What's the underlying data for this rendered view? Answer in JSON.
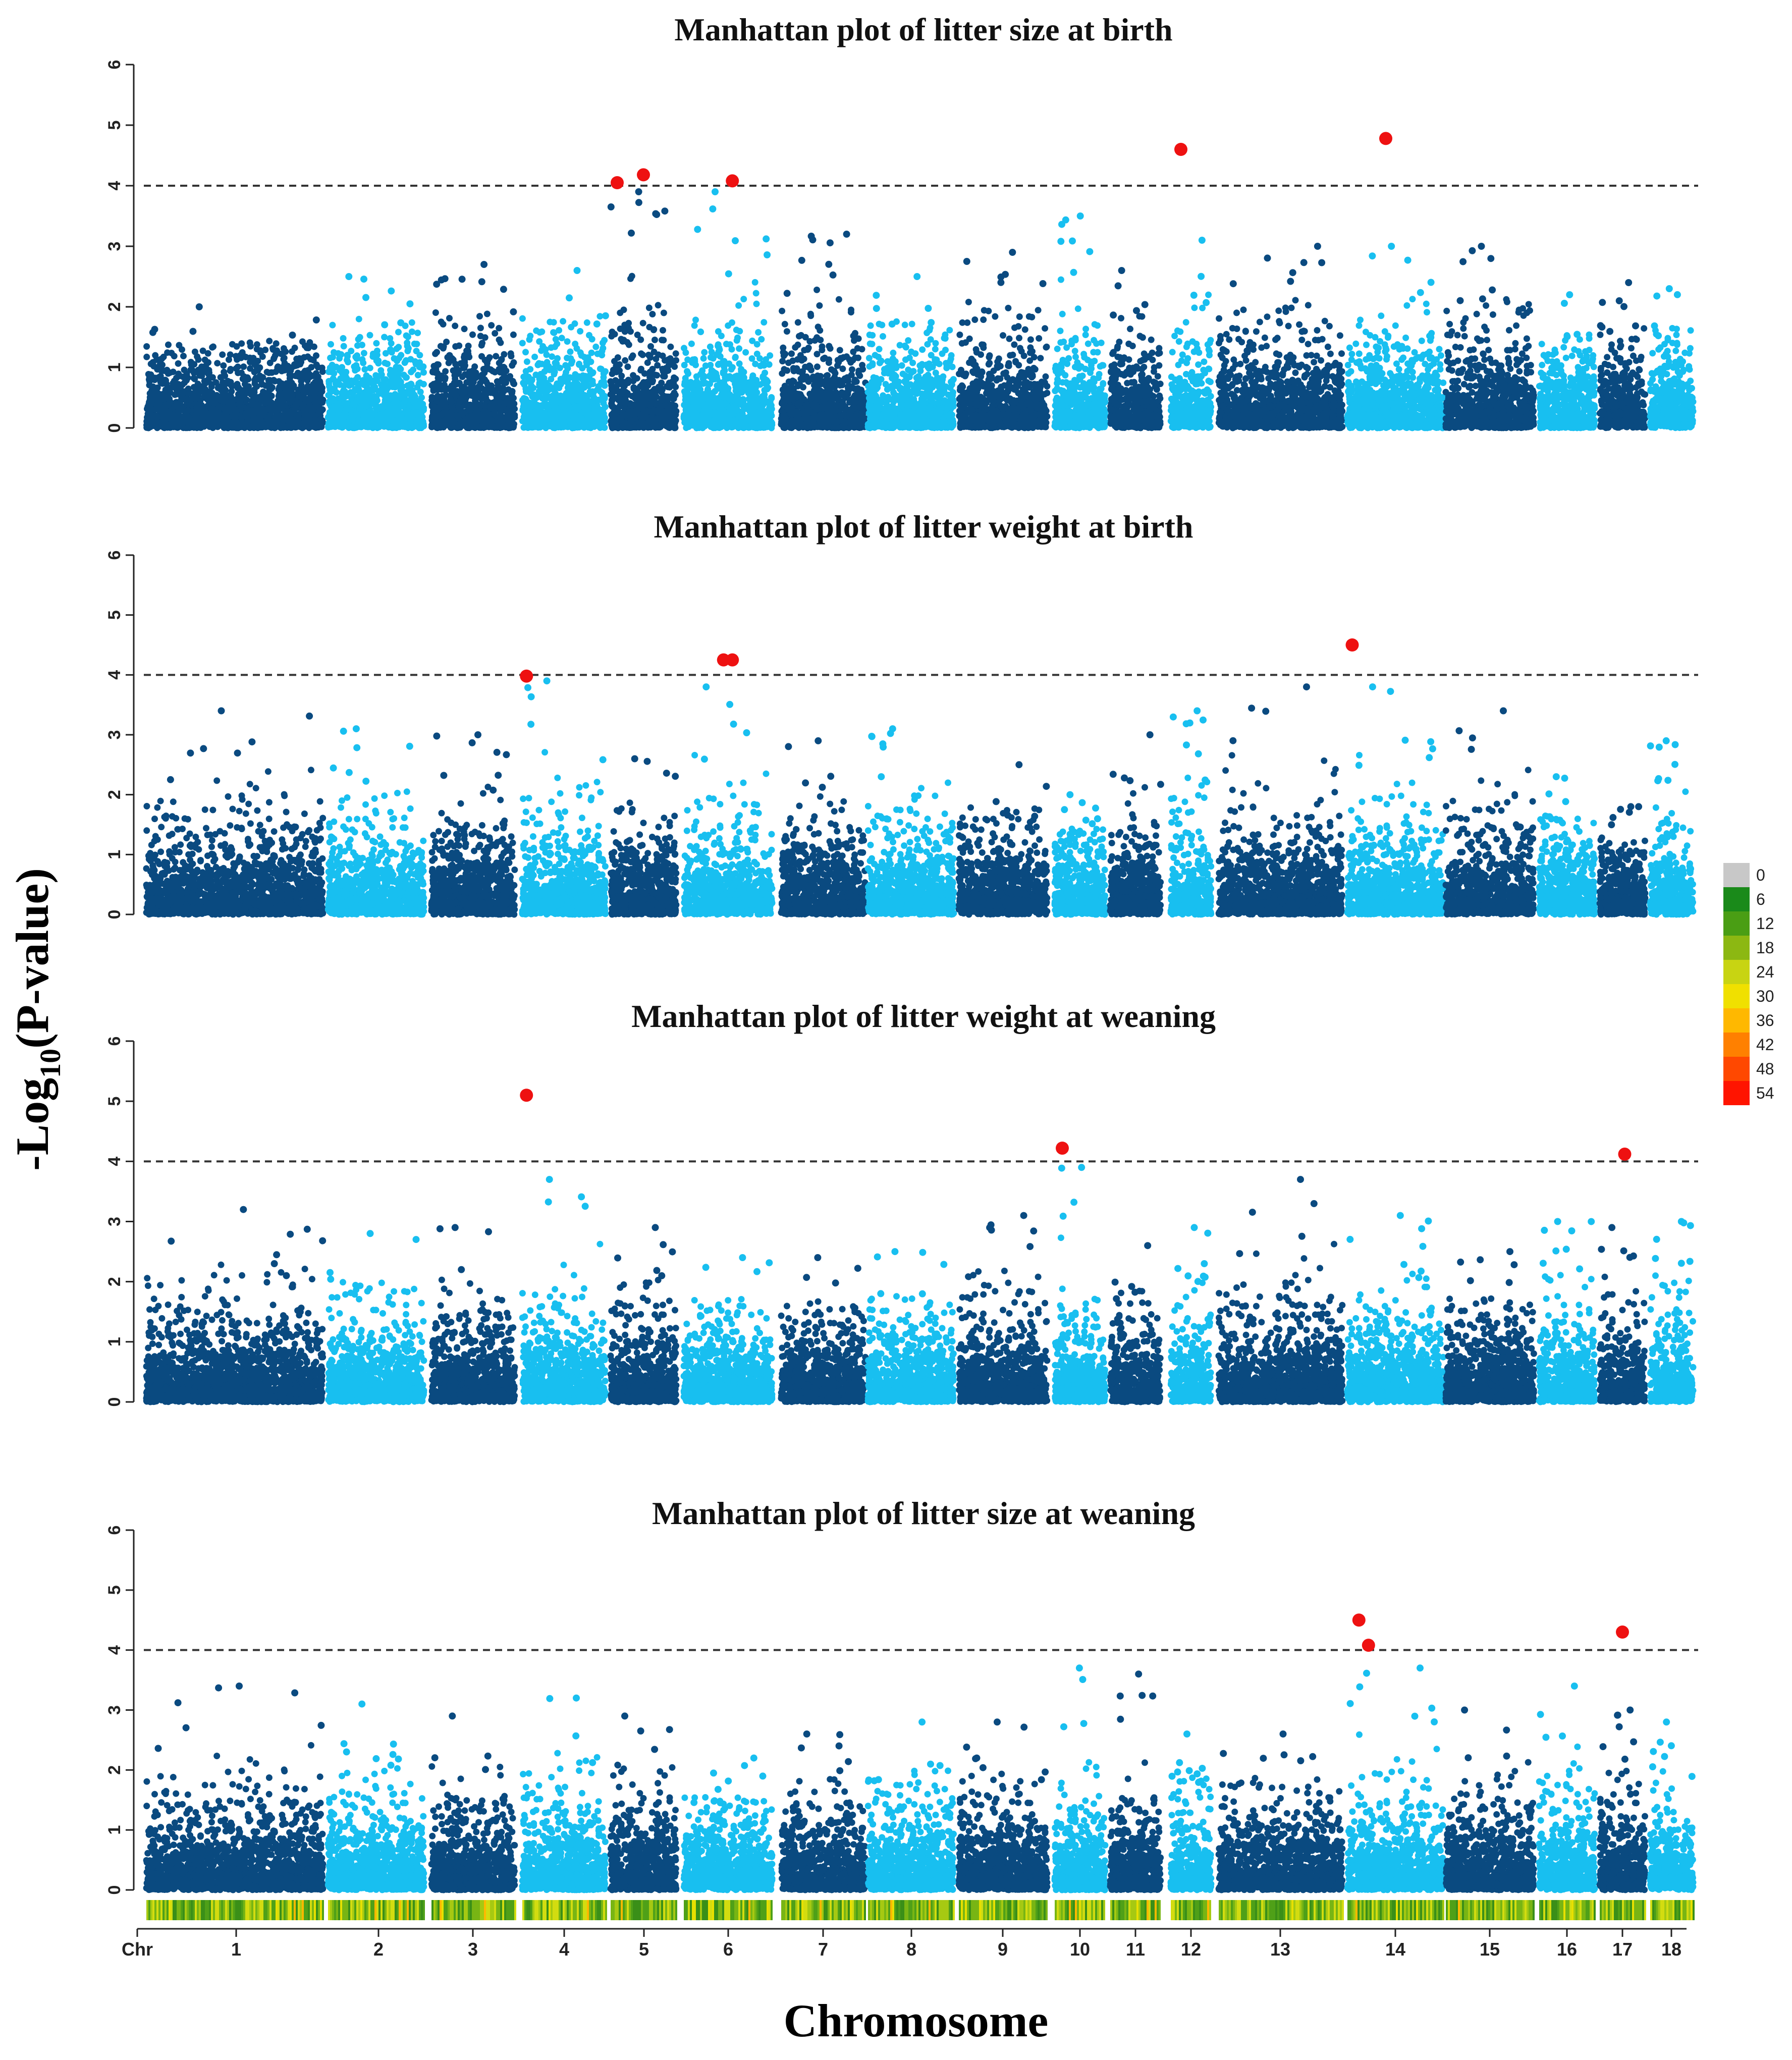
{
  "chart_data": [
    {
      "type": "scatter",
      "title": "Manhattan plot of litter size at birth",
      "xlabel": "Chromosome",
      "ylabel": "-Log10(P-value)",
      "ylim": [
        0,
        6
      ],
      "yticks": [
        "0",
        "1",
        "2",
        "3",
        "4",
        "5",
        "6"
      ],
      "threshold": 4,
      "chromosomes": [
        "1",
        "2",
        "3",
        "4",
        "5",
        "6",
        "7",
        "8",
        "9",
        "10",
        "11",
        "12",
        "13",
        "14",
        "15",
        "16",
        "17",
        "18"
      ],
      "chromosome_peaks": [
        2.0,
        2.5,
        2.7,
        2.6,
        3.9,
        3.9,
        3.2,
        2.5,
        2.9,
        3.5,
        2.6,
        3.1,
        3.0,
        3.0,
        3.0,
        2.2,
        2.4,
        2.3
      ],
      "significant": [
        {
          "chr": "5",
          "pos": 0.1,
          "value": 4.05
        },
        {
          "chr": "5",
          "pos": 0.5,
          "value": 4.18
        },
        {
          "chr": "6",
          "pos": 0.55,
          "value": 4.08
        },
        {
          "chr": "12",
          "pos": 0.25,
          "value": 4.6
        },
        {
          "chr": "14",
          "pos": 0.4,
          "value": 4.78
        }
      ]
    },
    {
      "type": "scatter",
      "title": "Manhattan plot of litter weight at birth",
      "xlabel": "Chromosome",
      "ylabel": "-Log10(P-value)",
      "ylim": [
        0,
        6
      ],
      "yticks": [
        "0",
        "1",
        "2",
        "3",
        "4",
        "5",
        "6"
      ],
      "threshold": 4,
      "chromosomes": [
        "1",
        "2",
        "3",
        "4",
        "5",
        "6",
        "7",
        "8",
        "9",
        "10",
        "11",
        "12",
        "13",
        "14",
        "15",
        "16",
        "17",
        "18"
      ],
      "chromosome_peaks": [
        3.4,
        3.1,
        3.0,
        3.9,
        2.6,
        3.8,
        2.9,
        3.1,
        2.5,
        2.0,
        3.0,
        3.4,
        3.8,
        3.8,
        3.4,
        2.3,
        1.8,
        2.9
      ],
      "significant": [
        {
          "chr": "4",
          "pos": 0.05,
          "value": 3.98
        },
        {
          "chr": "6",
          "pos": 0.45,
          "value": 4.25
        },
        {
          "chr": "6",
          "pos": 0.55,
          "value": 4.25
        },
        {
          "chr": "14",
          "pos": 0.05,
          "value": 4.5
        }
      ]
    },
    {
      "type": "scatter",
      "title": "Manhattan plot of litter weight at weaning",
      "xlabel": "Chromosome",
      "ylabel": "-Log10(P-value)",
      "ylim": [
        0,
        6
      ],
      "yticks": [
        "0",
        "1",
        "2",
        "3",
        "4",
        "5",
        "6"
      ],
      "threshold": 4,
      "chromosomes": [
        "1",
        "2",
        "3",
        "4",
        "5",
        "6",
        "7",
        "8",
        "9",
        "10",
        "11",
        "12",
        "13",
        "14",
        "15",
        "16",
        "17",
        "18"
      ],
      "chromosome_peaks": [
        3.2,
        2.8,
        2.9,
        3.7,
        2.9,
        2.4,
        2.4,
        2.5,
        3.1,
        3.9,
        2.6,
        2.9,
        3.7,
        3.1,
        2.5,
        3.0,
        2.9,
        3.0
      ],
      "significant": [
        {
          "chr": "4",
          "pos": 0.05,
          "value": 5.1
        },
        {
          "chr": "10",
          "pos": 0.15,
          "value": 4.22
        },
        {
          "chr": "17",
          "pos": 0.55,
          "value": 4.12
        }
      ]
    },
    {
      "type": "scatter",
      "title": "Manhattan plot of litter size at weaning",
      "xlabel": "Chromosome",
      "ylabel": "-Log10(P-value)",
      "ylim": [
        0,
        6
      ],
      "yticks": [
        "0",
        "1",
        "2",
        "3",
        "4",
        "5",
        "6"
      ],
      "threshold": 4,
      "chromosomes": [
        "1",
        "2",
        "3",
        "4",
        "5",
        "6",
        "7",
        "8",
        "9",
        "10",
        "11",
        "12",
        "13",
        "14",
        "15",
        "16",
        "17",
        "18"
      ],
      "chromosome_peaks": [
        3.4,
        3.1,
        2.9,
        3.2,
        2.9,
        2.2,
        2.6,
        2.8,
        2.8,
        3.7,
        3.6,
        2.6,
        2.6,
        3.7,
        3.0,
        3.4,
        3.0,
        2.8
      ],
      "significant": [
        {
          "chr": "14",
          "pos": 0.12,
          "value": 4.5
        },
        {
          "chr": "14",
          "pos": 0.22,
          "value": 4.08
        },
        {
          "chr": "17",
          "pos": 0.5,
          "value": 4.3
        }
      ]
    }
  ],
  "x_axis": {
    "chr_label": "Chr",
    "labels": [
      "1",
      "2",
      "3",
      "4",
      "5",
      "6",
      "7",
      "8",
      "9",
      "10",
      "11",
      "12",
      "13",
      "14",
      "15",
      "16",
      "17",
      "18"
    ],
    "title": "Chromosome"
  },
  "y_axis": {
    "prefix": "-Log",
    "subscript": "10",
    "suffix": "(P-value)"
  },
  "density_legend": {
    "labels": [
      "0",
      "6",
      "12",
      "18",
      "24",
      "30",
      "36",
      "42",
      "48",
      "54"
    ],
    "colors": [
      "#c8c8c8",
      "#1a8a1a",
      "#4a9e14",
      "#8cb812",
      "#c8d412",
      "#f0e000",
      "#ffb800",
      "#ff8000",
      "#ff4800",
      "#ff1400"
    ]
  },
  "colors": {
    "dark": "#0a4a80",
    "light": "#18bff0",
    "significant": "#ee1111",
    "threshold": "#333333"
  }
}
